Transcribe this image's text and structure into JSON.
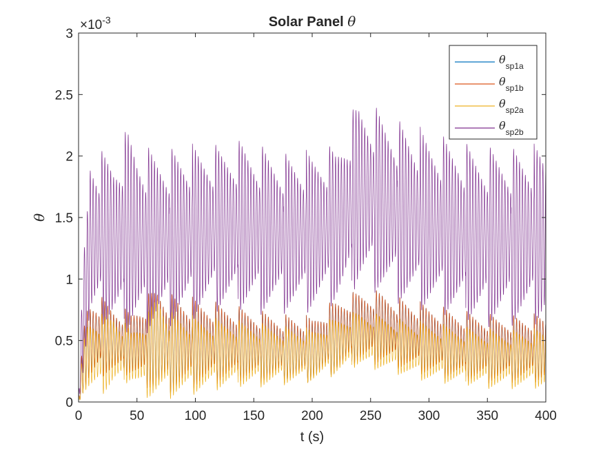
{
  "chart_data": {
    "type": "line",
    "title_text": "Solar Panel ",
    "title_symbol": "θ",
    "xlabel": "t (s)",
    "ylabel": "θ",
    "exponent_base": "×10",
    "exponent_power": "-3",
    "xlim": [
      0,
      400
    ],
    "ylim": [
      0,
      3
    ],
    "xticks": [
      "0",
      "50",
      "100",
      "150",
      "200",
      "250",
      "300",
      "350",
      "400"
    ],
    "yticks": [
      "0",
      "0.5",
      "1",
      "1.5",
      "2",
      "2.5",
      "3"
    ],
    "legend_position": "top-right",
    "grid": false,
    "series": [
      {
        "name_symbol": "θ",
        "name_sub": "sp1a",
        "color": "#0072BD",
        "period_s": 2.5,
        "cycle_period_s": 19.5,
        "envelope_t": [
          0,
          4,
          8,
          15,
          22,
          30,
          45,
          60,
          67,
          80,
          100,
          130,
          160,
          200,
          220,
          240,
          260,
          280,
          300,
          330,
          360,
          400
        ],
        "envelope_high": [
          0,
          0.6,
          0.85,
          0.88,
          0.85,
          0.8,
          0.75,
          0.9,
          1.0,
          0.9,
          0.85,
          0.8,
          0.75,
          0.7,
          0.85,
          0.92,
          0.92,
          0.85,
          0.8,
          0.75,
          0.72,
          0.72
        ],
        "envelope_low": [
          0,
          0.05,
          0.1,
          0.15,
          0.2,
          0.2,
          0.2,
          0.1,
          0.02,
          0.05,
          0.1,
          0.15,
          0.15,
          0.15,
          0.2,
          0.3,
          0.3,
          0.25,
          0.2,
          0.15,
          0.15,
          0.15
        ]
      },
      {
        "name_symbol": "θ",
        "name_sub": "sp1b",
        "color": "#D95319",
        "period_s": 2.5,
        "cycle_period_s": 19.5,
        "envelope_t": [
          0,
          4,
          8,
          15,
          22,
          30,
          45,
          60,
          67,
          80,
          100,
          130,
          160,
          200,
          220,
          240,
          260,
          280,
          300,
          330,
          360,
          400
        ],
        "envelope_high": [
          0,
          0.6,
          0.85,
          0.88,
          0.85,
          0.8,
          0.75,
          0.9,
          1.0,
          0.9,
          0.85,
          0.8,
          0.75,
          0.7,
          0.85,
          0.92,
          0.92,
          0.85,
          0.8,
          0.75,
          0.72,
          0.72
        ],
        "envelope_low": [
          0,
          0.05,
          0.1,
          0.15,
          0.2,
          0.2,
          0.2,
          0.1,
          0.02,
          0.05,
          0.1,
          0.15,
          0.15,
          0.15,
          0.2,
          0.3,
          0.3,
          0.25,
          0.2,
          0.15,
          0.15,
          0.15
        ]
      },
      {
        "name_symbol": "θ",
        "name_sub": "sp2a",
        "color": "#EDB120",
        "period_s": 2.5,
        "cycle_period_s": 19.5,
        "envelope_t": [
          0,
          4,
          8,
          15,
          22,
          30,
          45,
          60,
          67,
          80,
          100,
          130,
          160,
          200,
          220,
          240,
          260,
          280,
          300,
          330,
          360,
          400
        ],
        "envelope_high": [
          0,
          0.5,
          0.7,
          0.72,
          0.72,
          0.75,
          0.6,
          0.75,
          0.95,
          0.75,
          0.7,
          0.68,
          0.65,
          0.6,
          0.7,
          0.75,
          0.72,
          0.68,
          0.65,
          0.62,
          0.6,
          0.6
        ],
        "envelope_low": [
          0,
          0.05,
          0.05,
          0.05,
          0.05,
          0.1,
          0.15,
          0.02,
          0.0,
          0.02,
          0.05,
          0.1,
          0.12,
          0.15,
          0.2,
          0.28,
          0.25,
          0.2,
          0.15,
          0.12,
          0.1,
          0.1
        ]
      },
      {
        "name_symbol": "θ",
        "name_sub": "sp2b",
        "color": "#7E2F8E",
        "period_s": 2.5,
        "cycle_period_s": 19.5,
        "envelope_t": [
          0,
          4,
          7,
          10,
          20,
          30,
          43,
          50,
          60,
          80,
          100,
          120,
          140,
          160,
          180,
          200,
          220,
          230,
          240,
          250,
          260,
          280,
          300,
          320,
          340,
          360,
          380,
          400
        ],
        "envelope_high": [
          0,
          1.2,
          1.6,
          2.1,
          2.05,
          2.05,
          2.27,
          2.15,
          2.1,
          2.1,
          2.1,
          2.1,
          2.15,
          2.1,
          2.05,
          2.05,
          2.1,
          2.3,
          2.5,
          2.45,
          2.4,
          2.3,
          2.2,
          2.15,
          2.1,
          2.1,
          2.1,
          2.1
        ],
        "envelope_low": [
          0,
          0.2,
          0.4,
          0.55,
          0.6,
          0.55,
          0.5,
          0.55,
          0.55,
          0.6,
          0.65,
          0.7,
          0.7,
          0.7,
          0.7,
          0.7,
          0.75,
          0.8,
          0.9,
          0.9,
          0.85,
          0.75,
          0.7,
          0.65,
          0.6,
          0.6,
          0.6,
          0.6
        ]
      }
    ]
  }
}
